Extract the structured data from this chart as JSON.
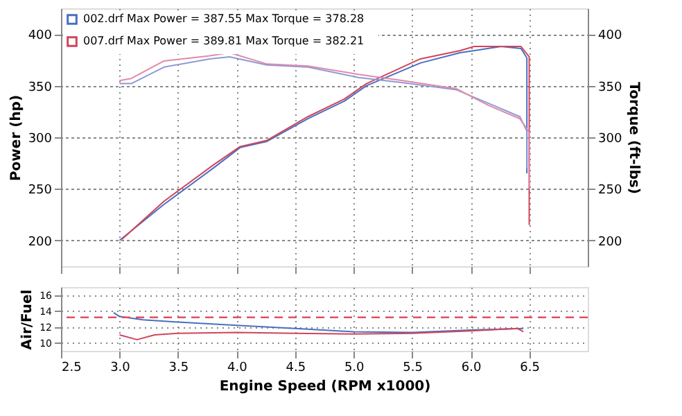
{
  "chart_data": [
    {
      "type": "line",
      "ylabel": "Power (hp)",
      "y2label": "Torque (ft-lbs)",
      "xlim": [
        2.5,
        7.0
      ],
      "xticks": [
        2.5,
        3,
        3.5,
        4,
        4.5,
        5,
        5.5,
        6,
        6.5
      ],
      "ylim": [
        175,
        425
      ],
      "yticks": [
        200,
        250,
        300,
        350,
        400
      ],
      "y2lim": [
        175,
        425
      ],
      "y2ticks": [
        200,
        250,
        300,
        350,
        400
      ],
      "grid": true,
      "legend": "top left",
      "tick_labels": "y",
      "line_style": "solid",
      "marker": "none",
      "series": [
        {
          "name": "002.drf Max Power = 387.55    Max Torque = 378.28",
          "color": "#4a6fc0",
          "x": [
            3.0,
            3.38,
            3.8,
            4.03,
            4.26,
            4.61,
            4.92,
            5.11,
            5.57,
            5.91,
            6.03,
            6.26,
            6.43,
            6.48,
            6.48
          ],
          "values": [
            200,
            235,
            270,
            290,
            296,
            318,
            335,
            350,
            372,
            382,
            384,
            388,
            386,
            377,
            265
          ]
        },
        {
          "name": "007.drf Max Power = 389.81    Max Torque = 382.21",
          "color": "#d0455a",
          "x": [
            3.02,
            3.38,
            3.8,
            4.03,
            4.26,
            4.61,
            4.92,
            5.11,
            5.57,
            5.91,
            6.03,
            6.26,
            6.43,
            6.5,
            6.5
          ],
          "values": [
            201,
            238,
            273,
            291,
            297,
            320,
            337,
            352,
            376,
            384,
            388,
            388,
            388,
            378,
            215
          ]
        },
        {
          "color": "#8c9ad8",
          "axis": "y2",
          "x": [
            3.0,
            3.1,
            3.38,
            3.77,
            3.94,
            4.26,
            4.61,
            5.04,
            5.42,
            5.88,
            6.15,
            6.42,
            6.48,
            6.48
          ],
          "values": [
            352,
            352,
            368,
            376,
            378,
            370,
            368,
            358,
            353,
            346,
            333,
            320,
            306,
            270
          ]
        },
        {
          "color": "#e08aa8",
          "axis": "y2",
          "x": [
            3.0,
            3.1,
            3.38,
            3.77,
            3.94,
            4.26,
            4.61,
            5.04,
            5.42,
            5.88,
            6.15,
            6.42,
            6.5,
            6.5
          ],
          "values": [
            355,
            357,
            374,
            379,
            382,
            371,
            369,
            361,
            355,
            347,
            331,
            318,
            305,
            250
          ]
        }
      ]
    },
    {
      "type": "line",
      "xlabel": "Engine Speed (RPM x1000)",
      "ylabel": "Air/Fuel",
      "xlim": [
        2.5,
        7.0
      ],
      "xticks": [
        2.5,
        {
          "value": 3,
          "label": "3.0"
        },
        3.5,
        {
          "value": 4,
          "label": "4.0"
        },
        4.5,
        {
          "value": 5,
          "label": "5.0"
        },
        5.5,
        {
          "value": 6,
          "label": "6.0"
        },
        6.5
      ],
      "ylim": [
        9,
        17
      ],
      "yticks": [
        10,
        12,
        14,
        16
      ],
      "grid": true,
      "line_style": "solid",
      "marker": "none",
      "ref_lines": [
        {
          "axis": "y",
          "value": 13.2,
          "color": "#e05060",
          "line_style": "dashed"
        }
      ],
      "series": [
        {
          "color": "#4a6fc0",
          "x": [
            2.95,
            3.0,
            3.2,
            3.5,
            4.0,
            4.5,
            5.0,
            5.5,
            6.0,
            6.45
          ],
          "values": [
            13.8,
            13.3,
            12.9,
            12.6,
            12.2,
            11.8,
            11.4,
            11.3,
            11.6,
            11.8
          ]
        },
        {
          "color": "#d0455a",
          "x": [
            3.0,
            3.15,
            3.3,
            3.5,
            4.0,
            4.5,
            5.0,
            5.5,
            6.0,
            6.4,
            6.45
          ],
          "values": [
            11.0,
            10.4,
            11.0,
            11.2,
            11.3,
            11.2,
            11.1,
            11.2,
            11.5,
            11.8,
            11.4
          ]
        }
      ]
    }
  ]
}
